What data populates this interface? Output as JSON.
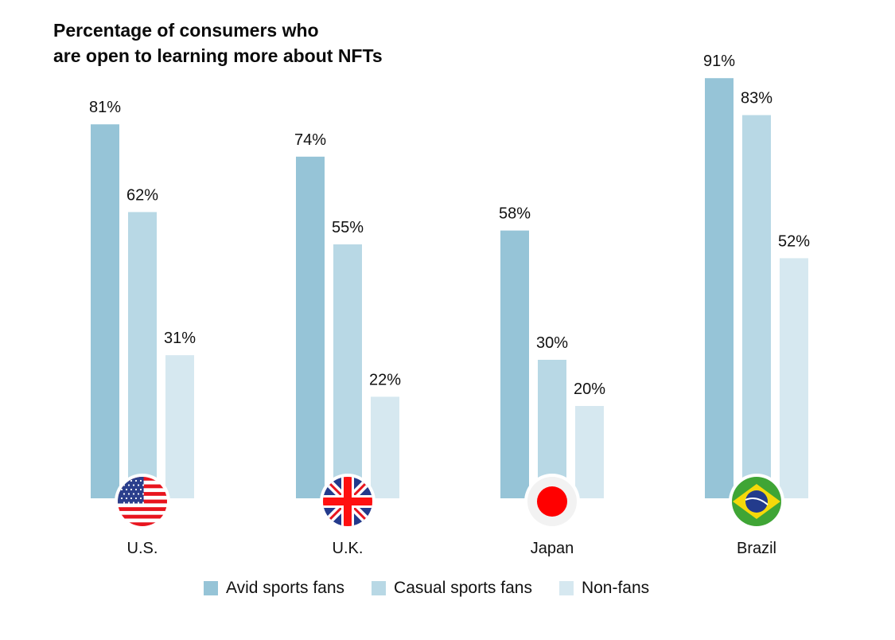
{
  "chart_data": {
    "type": "bar",
    "title": "Percentage of consumers who are open to learning more about NFTs",
    "title_lines": [
      "Percentage of consumers who",
      "are open to learning more about NFTs"
    ],
    "categories": [
      "U.S.",
      "U.K.",
      "Japan",
      "Brazil"
    ],
    "category_icons": [
      "us-flag-icon",
      "uk-flag-icon",
      "japan-flag-icon",
      "brazil-flag-icon"
    ],
    "series": [
      {
        "name": "Avid sports fans",
        "color": "#96c4d7",
        "values": [
          81,
          74,
          58,
          91
        ]
      },
      {
        "name": "Casual sports fans",
        "color": "#b8d8e5",
        "values": [
          62,
          55,
          30,
          83
        ]
      },
      {
        "name": "Non-fans",
        "color": "#d6e8f0",
        "values": [
          31,
          22,
          20,
          52
        ]
      }
    ],
    "value_suffix": "%",
    "xlabel": "",
    "ylabel": "",
    "ylim": [
      0,
      100
    ],
    "grid": false,
    "legend_position": "bottom"
  }
}
